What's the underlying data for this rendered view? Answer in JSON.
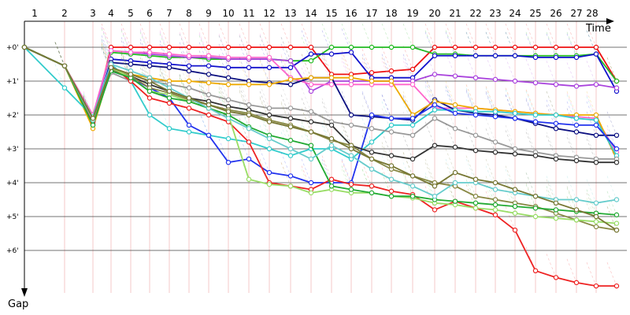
{
  "chart_data": {
    "type": "line",
    "xlabel": "Time",
    "ylabel": "Gap",
    "laps": [
      "1",
      "2",
      "3",
      "4",
      "5",
      "6",
      "7",
      "8",
      "9",
      "10",
      "11",
      "12",
      "13",
      "14",
      "15",
      "16",
      "17",
      "18",
      "19",
      "20",
      "21",
      "22",
      "23",
      "24",
      "25",
      "26",
      "27",
      "28"
    ],
    "gap_ticks": [
      "+0'",
      "+1'",
      "+2'",
      "+3'",
      "+4'",
      "+5'",
      "+6'"
    ],
    "grid": true,
    "ylim": [
      0,
      7.5
    ],
    "series": [
      {
        "color": "#ee1111",
        "values": [
          0,
          0.55,
          2.2,
          0,
          0,
          0,
          0,
          0,
          0,
          0,
          0,
          0,
          0,
          0,
          0.8,
          0.8,
          0.75,
          0.7,
          0.65,
          0,
          0,
          0,
          0,
          0,
          0,
          0,
          0,
          0,
          1
        ]
      },
      {
        "color": "#22bb22",
        "values": [
          0,
          0.55,
          2.1,
          0.15,
          0.2,
          0.25,
          0.3,
          0.3,
          0.35,
          0.35,
          0.35,
          0.35,
          0.4,
          0.4,
          0,
          0,
          0,
          0,
          0,
          0.2,
          0.2,
          0.25,
          0.25,
          0.25,
          0.25,
          0.25,
          0.25,
          0.2,
          1
        ]
      },
      {
        "color": "#1111cc",
        "values": [
          0,
          0.55,
          2.3,
          0.35,
          0.4,
          0.45,
          0.5,
          0.55,
          0.55,
          0.6,
          0.6,
          0.6,
          0.6,
          0.2,
          0.2,
          0.15,
          0.9,
          0.9,
          0.9,
          0.25,
          0.25,
          0.25,
          0.25,
          0.25,
          0.3,
          0.3,
          0.3,
          0.2,
          1.3
        ]
      },
      {
        "color": "#aa44dd",
        "values": [
          0,
          0.55,
          2.15,
          0.1,
          0.15,
          0.2,
          0.25,
          0.3,
          0.3,
          0.35,
          0.35,
          0.35,
          0.4,
          1.3,
          1.0,
          1.0,
          1.0,
          1.0,
          1.0,
          0.8,
          0.85,
          0.9,
          0.95,
          1.0,
          1.05,
          1.1,
          1.15,
          1.1,
          1.2
        ]
      },
      {
        "color": "#ff66cc",
        "values": [
          0,
          0.55,
          2.0,
          0.1,
          0.15,
          0.15,
          0.2,
          0.25,
          0.25,
          0.3,
          0.3,
          0.3,
          0.9,
          1.1,
          1.1,
          1.1,
          1.1,
          1.1,
          1.1,
          1.8,
          1.8,
          1.8,
          1.85,
          1.9,
          1.95,
          2.0,
          2.05,
          2.1,
          3.1
        ]
      },
      {
        "color": "#0c1080",
        "values": [
          0,
          0.55,
          2.25,
          0.45,
          0.5,
          0.55,
          0.6,
          0.7,
          0.8,
          0.9,
          1.0,
          1.05,
          1.1,
          0.9,
          0.9,
          2.0,
          2.05,
          2.1,
          2.15,
          1.55,
          1.85,
          1.95,
          2.0,
          2.1,
          2.25,
          2.4,
          2.5,
          2.6,
          2.6
        ]
      },
      {
        "color": "#eeaa00",
        "values": [
          0,
          0.55,
          2.4,
          0.6,
          0.8,
          0.9,
          1.0,
          1.0,
          1.05,
          1.1,
          1.1,
          1.1,
          0.95,
          0.9,
          0.9,
          0.9,
          1.0,
          1.0,
          2.0,
          1.6,
          1.7,
          1.8,
          1.85,
          1.9,
          1.95,
          2.0,
          2.0,
          2.0,
          3.3
        ]
      },
      {
        "color": "#33cccc",
        "values": [
          0,
          1.2,
          2.05,
          0.5,
          1.0,
          2.0,
          2.4,
          2.5,
          2.6,
          2.7,
          2.8,
          3.0,
          3.2,
          3.0,
          3.0,
          3.3,
          2.8,
          2.3,
          2.3,
          1.85,
          1.85,
          1.9,
          1.9,
          1.95,
          2.0,
          2.0,
          2.1,
          2.15,
          3.2
        ]
      },
      {
        "color": "#2233ee",
        "values": [
          0,
          0.55,
          2.2,
          0.7,
          0.9,
          1.2,
          1.5,
          2.3,
          2.6,
          3.4,
          3.3,
          3.7,
          3.8,
          4.0,
          4.0,
          4.0,
          2.0,
          2.1,
          2.1,
          1.7,
          1.95,
          2.0,
          2.05,
          2.1,
          2.2,
          2.25,
          2.3,
          2.3,
          3.0
        ]
      },
      {
        "color": "#999999",
        "values": [
          0,
          0.55,
          2.15,
          0.75,
          1.0,
          1.0,
          1.1,
          1.2,
          1.4,
          1.55,
          1.7,
          1.8,
          1.8,
          1.9,
          2.2,
          2.3,
          2.4,
          2.5,
          2.6,
          2.1,
          2.4,
          2.6,
          2.8,
          3.0,
          3.1,
          3.2,
          3.25,
          3.3,
          3.3
        ]
      },
      {
        "color": "#333333",
        "values": [
          0,
          0.55,
          2.15,
          0.7,
          0.85,
          1.1,
          1.3,
          1.5,
          1.6,
          1.75,
          1.85,
          2.0,
          2.1,
          2.2,
          2.3,
          2.9,
          3.1,
          3.2,
          3.3,
          2.9,
          2.95,
          3.05,
          3.1,
          3.15,
          3.2,
          3.3,
          3.35,
          3.4,
          3.4
        ]
      },
      {
        "color": "#888844",
        "values": [
          0,
          0.55,
          2.15,
          0.65,
          0.85,
          1.2,
          1.35,
          1.55,
          1.7,
          1.85,
          1.95,
          2.15,
          2.3,
          2.5,
          2.75,
          2.9,
          3.3,
          3.6,
          3.8,
          4.0,
          4.1,
          4.4,
          4.5,
          4.6,
          4.7,
          4.9,
          5.1,
          5.3,
          5.4
        ]
      },
      {
        "color": "#ee2222",
        "values": [
          0,
          0.55,
          2.2,
          0.55,
          1.0,
          1.5,
          1.65,
          1.8,
          2.0,
          2.2,
          2.8,
          4.0,
          4.1,
          4.2,
          3.9,
          4.05,
          4.1,
          4.25,
          4.35,
          4.8,
          4.55,
          4.75,
          4.95,
          5.4,
          6.6,
          6.8,
          6.95,
          7.05,
          7.05
        ]
      },
      {
        "color": "#99dd66",
        "values": [
          0,
          0.55,
          2.1,
          0.6,
          0.9,
          1.3,
          1.4,
          1.6,
          1.8,
          2.0,
          3.9,
          4.05,
          4.1,
          4.3,
          4.2,
          4.3,
          4.3,
          4.4,
          4.45,
          4.6,
          4.65,
          4.75,
          4.8,
          4.9,
          5.0,
          5.05,
          5.1,
          5.15,
          5.2
        ]
      },
      {
        "color": "#22aa33",
        "values": [
          0,
          0.55,
          2.3,
          0.7,
          0.9,
          1.3,
          1.5,
          1.6,
          1.8,
          2.0,
          2.35,
          2.6,
          2.75,
          2.9,
          4.1,
          4.2,
          4.3,
          4.4,
          4.4,
          4.5,
          4.55,
          4.6,
          4.65,
          4.7,
          4.75,
          4.8,
          4.85,
          4.9,
          4.95
        ]
      },
      {
        "color": "#66cccc",
        "values": [
          0,
          0.55,
          2.15,
          0.5,
          0.7,
          0.9,
          1.2,
          1.5,
          1.8,
          2.1,
          2.4,
          2.7,
          3.0,
          3.3,
          2.9,
          3.2,
          3.6,
          3.9,
          4.1,
          4.4,
          4.0,
          4.0,
          4.2,
          4.3,
          4.4,
          4.5,
          4.5,
          4.6,
          4.5
        ]
      },
      {
        "color": "#777733",
        "values": [
          0,
          0.55,
          2.1,
          0.6,
          0.8,
          1.0,
          1.3,
          1.5,
          1.7,
          1.9,
          2.0,
          2.2,
          2.35,
          2.5,
          2.7,
          3.0,
          3.3,
          3.5,
          3.8,
          4.1,
          3.7,
          3.9,
          4.0,
          4.2,
          4.4,
          4.6,
          4.8,
          5.0,
          5.4
        ]
      }
    ]
  }
}
